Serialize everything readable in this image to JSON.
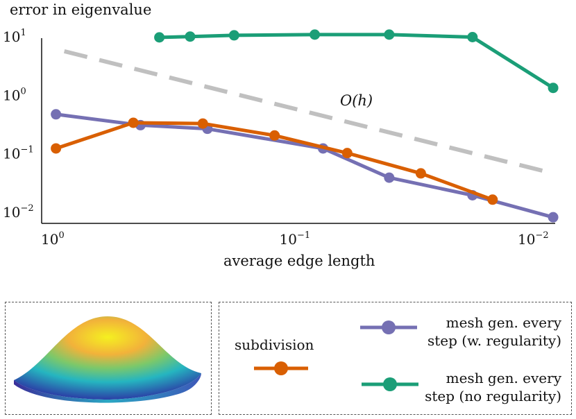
{
  "chart_data": {
    "type": "line",
    "title": "error in eigenvalue",
    "xlabel": "average edge length",
    "ylabel": "",
    "x_scale": "log",
    "y_scale": "log",
    "x_reversed": true,
    "xlim": [
      1.0,
      0.0075
    ],
    "ylim": [
      0.007,
      15
    ],
    "x_ticks": [
      {
        "value": 1,
        "base": "10",
        "exp": "0"
      },
      {
        "value": 0.1,
        "base": "10",
        "exp": "−1"
      },
      {
        "value": 0.01,
        "base": "10",
        "exp": "−2"
      }
    ],
    "y_ticks": [
      {
        "value": 10,
        "base": "10",
        "exp": "1"
      },
      {
        "value": 1,
        "base": "10",
        "exp": "0"
      },
      {
        "value": 0.1,
        "base": "10",
        "exp": "−1"
      },
      {
        "value": 0.01,
        "base": "10",
        "exp": "−2"
      }
    ],
    "grid": false,
    "series": [
      {
        "name": "subdivision",
        "color": "#d95f02",
        "x": [
          0.95,
          0.45,
          0.23,
          0.115,
          0.057,
          0.028,
          0.014
        ],
        "y": [
          0.12,
          0.33,
          0.32,
          0.2,
          0.1,
          0.045,
          0.016
        ]
      },
      {
        "name": "mesh gen. every step (w. regularity)",
        "color": "#7570b3",
        "x": [
          0.95,
          0.42,
          0.22,
          0.072,
          0.038,
          0.017,
          0.0078
        ],
        "y": [
          0.46,
          0.3,
          0.26,
          0.12,
          0.038,
          0.019,
          0.008
        ]
      },
      {
        "name": "mesh gen. every step (no regularity)",
        "color": "#1b9e77",
        "x": [
          0.35,
          0.26,
          0.17,
          0.078,
          0.038,
          0.017,
          0.0078
        ],
        "y": [
          9.5,
          9.8,
          10.3,
          10.6,
          10.6,
          9.6,
          1.3
        ]
      }
    ],
    "reference": {
      "label": "O(h)",
      "color": "#c0c0c0",
      "x": [
        0.95,
        0.0078
      ],
      "y": [
        5.5,
        0.045
      ]
    },
    "legend_placement": "bottom"
  },
  "legend": {
    "subdivision": "subdivision",
    "w_reg_line1": "mesh gen. every",
    "w_reg_line2": "step (w. regularity)",
    "no_reg_line1": "mesh gen. every",
    "no_reg_line2": "step (no regularity)"
  },
  "thumbnail": {
    "icon": "bump-surface-render"
  }
}
